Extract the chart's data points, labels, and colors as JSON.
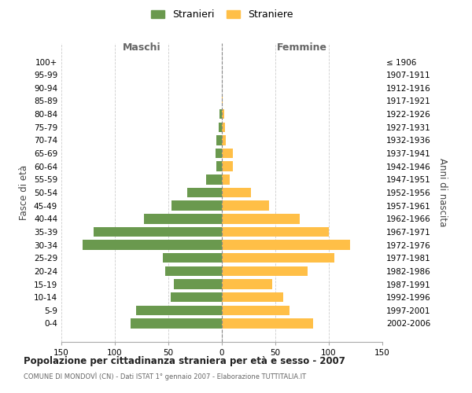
{
  "age_groups": [
    "0-4",
    "5-9",
    "10-14",
    "15-19",
    "20-24",
    "25-29",
    "30-34",
    "35-39",
    "40-44",
    "45-49",
    "50-54",
    "55-59",
    "60-64",
    "65-69",
    "70-74",
    "75-79",
    "80-84",
    "85-89",
    "90-94",
    "95-99",
    "100+"
  ],
  "birth_years": [
    "2002-2006",
    "1997-2001",
    "1992-1996",
    "1987-1991",
    "1982-1986",
    "1977-1981",
    "1972-1976",
    "1967-1971",
    "1962-1966",
    "1957-1961",
    "1952-1956",
    "1947-1951",
    "1942-1946",
    "1937-1941",
    "1932-1936",
    "1927-1931",
    "1922-1926",
    "1917-1921",
    "1912-1916",
    "1907-1911",
    "≤ 1906"
  ],
  "maschi": [
    85,
    80,
    48,
    45,
    53,
    55,
    130,
    120,
    73,
    47,
    32,
    15,
    5,
    6,
    5,
    3,
    2,
    0,
    0,
    0,
    0
  ],
  "femmine": [
    85,
    63,
    57,
    47,
    80,
    105,
    120,
    100,
    73,
    44,
    27,
    7,
    10,
    10,
    4,
    3,
    2,
    1,
    0,
    0,
    0
  ],
  "male_color": "#6a994e",
  "female_color": "#ffbf47",
  "background_color": "#ffffff",
  "grid_color": "#cccccc",
  "title": "Popolazione per cittadinanza straniera per età e sesso - 2007",
  "subtitle": "COMUNE DI MONDOVÌ (CN) - Dati ISTAT 1° gennaio 2007 - Elaborazione TUTTITALIA.IT",
  "ylabel_left": "Fasce di età",
  "ylabel_right": "Anni di nascita",
  "xlabel_left": "Maschi",
  "xlabel_right": "Femmine",
  "legend_male": "Stranieri",
  "legend_female": "Straniere",
  "xlim": 150,
  "bar_height": 0.75
}
